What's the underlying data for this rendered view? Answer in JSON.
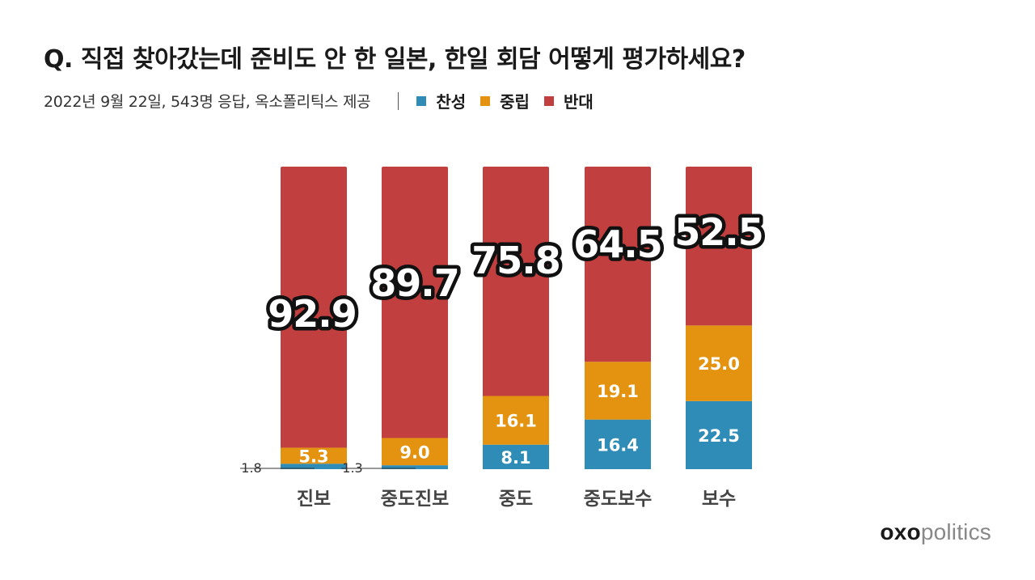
{
  "title": "Q. 직접 찾아갔는데 준비도 안 한 일본, 한일 회담 어떻게 평가하세요?",
  "subtitle": "2022년 9월 22일, 543명 응답, 옥소폴리틱스 제공",
  "legend": [
    {
      "label": "찬성",
      "color": "#2e8cb7"
    },
    {
      "label": "중립",
      "color": "#e3930f"
    },
    {
      "label": "반대",
      "color": "#c23f3f"
    }
  ],
  "brand": {
    "bold": "oxo",
    "light": "politics"
  },
  "chart_data": {
    "type": "bar",
    "stacked": true,
    "categories": [
      "진보",
      "중도진보",
      "중도",
      "중도보수",
      "보수"
    ],
    "series": [
      {
        "name": "찬성",
        "color": "#2e8cb7",
        "values": [
          1.8,
          1.3,
          8.1,
          16.4,
          22.5
        ]
      },
      {
        "name": "중립",
        "color": "#e3930f",
        "values": [
          5.3,
          9.0,
          16.1,
          19.1,
          25.0
        ]
      },
      {
        "name": "반대",
        "color": "#c23f3f",
        "values": [
          92.9,
          89.7,
          75.8,
          64.5,
          52.5
        ]
      }
    ],
    "ylim": [
      0,
      100
    ],
    "grid": false,
    "legend_position": "top-left"
  }
}
